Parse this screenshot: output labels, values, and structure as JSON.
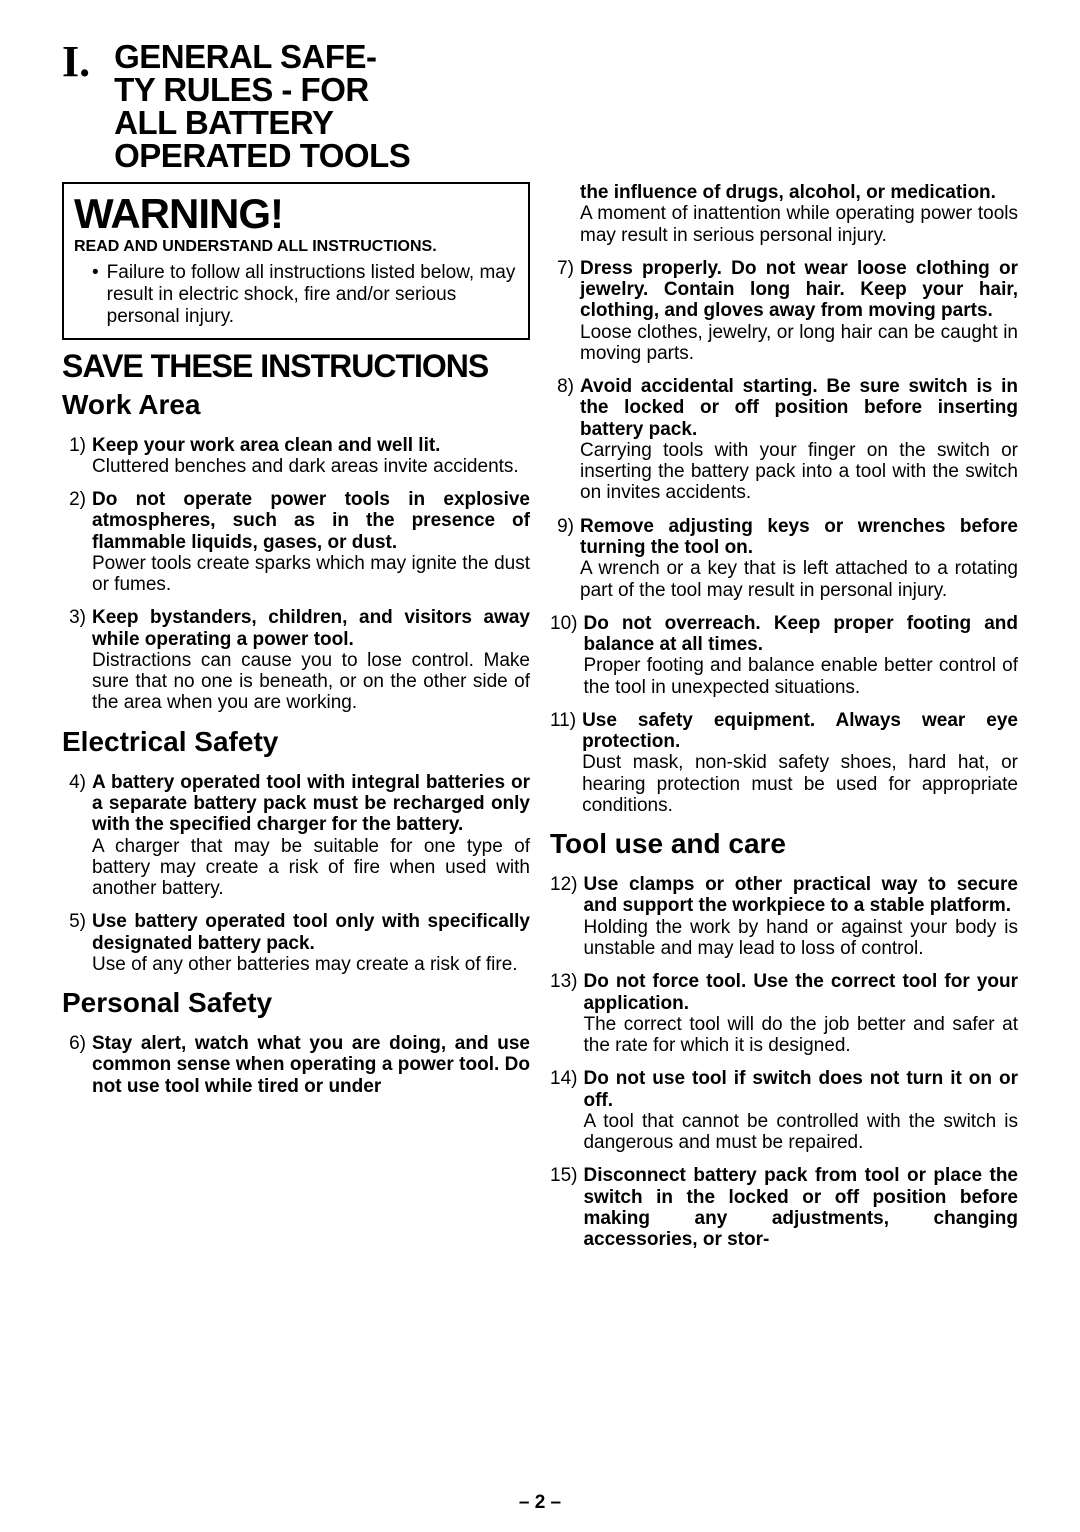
{
  "header": {
    "numeral": "I.",
    "title_line1": "GENERAL SAFE-",
    "title_line2": "TY RULES - FOR",
    "title_line3": "ALL BATTERY",
    "title_line4": "OPERATED TOOLS"
  },
  "warning": {
    "title": "WARNING!",
    "sub": "READ AND UNDERSTAND ALL INSTRUCTIONS.",
    "bullet": "Failure to follow all instructions listed below, may result in electric shock, fire and/or serious personal injury."
  },
  "save_line": "SAVE THESE INSTRUCTIONS",
  "sections": {
    "work_area": "Work Area",
    "electrical": "Electrical Safety",
    "personal": "Personal Safety",
    "tool_use": "Tool use and care"
  },
  "rules": {
    "r1": {
      "num": "1)",
      "bold": "Keep your work area clean and well lit.",
      "text": "Cluttered benches and dark areas invite accidents."
    },
    "r2": {
      "num": "2)",
      "bold": "Do not operate power tools in explosive atmospheres, such as in the presence of flammable liquids, gases, or dust.",
      "text": "Power tools create sparks which may ignite the dust or fumes."
    },
    "r3": {
      "num": "3)",
      "bold": "Keep bystanders, children, and visitors away while operating a power tool.",
      "text": "Distractions can cause you to lose control. Make sure that no one is beneath, or on the other side of the area when you are working."
    },
    "r4": {
      "num": "4)",
      "bold": "A battery operated tool with integral batteries or a separate battery pack must be recharged only with the specified charger for the battery.",
      "text": "A charger that may be suitable for one type of battery may create a risk of fire when used with another battery."
    },
    "r5": {
      "num": "5)",
      "bold": "Use battery operated tool only with specifically designated battery pack.",
      "text": "Use of any other batteries may create a risk of fire."
    },
    "r6": {
      "num": "6)",
      "bold": "Stay alert, watch what you are doing, and use common sense when operating a power tool. Do not use tool while tired or under"
    },
    "r6b": {
      "bold": "the influence of drugs, alcohol, or medication.",
      "text": "A moment of inattention while operating power tools may result in serious personal injury."
    },
    "r7": {
      "num": "7)",
      "bold": "Dress properly. Do not wear loose clothing or jewelry. Contain long hair. Keep your hair, clothing, and gloves away from moving parts.",
      "text": "Loose clothes, jewelry, or long hair can be caught in moving parts."
    },
    "r8": {
      "num": "8)",
      "bold": "Avoid accidental starting. Be sure switch is in the locked or off position before inserting battery pack.",
      "text": "Carrying tools with your finger on the switch or inserting the battery pack into a tool with the switch on invites accidents."
    },
    "r9": {
      "num": "9)",
      "bold": "Remove adjusting keys or wrenches before turning the tool on.",
      "text": "A wrench or a key that is left attached to a rotating part of the tool may result in personal injury."
    },
    "r10": {
      "num": "10)",
      "bold": "Do not overreach. Keep proper footing and balance at all times.",
      "text": "Proper footing and balance enable better control of the tool in unexpected situations."
    },
    "r11": {
      "num": "11)",
      "bold": "Use safety equipment. Always wear eye protection.",
      "text": "Dust mask, non-skid safety shoes, hard hat, or hearing protection must be used for appropriate conditions."
    },
    "r12": {
      "num": "12)",
      "bold": "Use clamps or other practical way to secure and support the workpiece to a stable platform.",
      "text": "Holding the work by hand or against your body is unstable and may lead to loss of control."
    },
    "r13": {
      "num": "13)",
      "bold": "Do not force tool. Use the correct tool for your application.",
      "text": "The correct tool will do the job better and safer at the rate for which it is designed."
    },
    "r14": {
      "num": "14)",
      "bold": "Do not use tool if switch does not turn it on or off.",
      "text": "A tool that cannot be controlled with the switch is dangerous and must be repaired."
    },
    "r15": {
      "num": "15)",
      "bold": "Disconnect battery pack from tool or place the switch in the locked or off position before making any adjustments, changing accessories, or stor-"
    }
  },
  "page_number": "– 2 –"
}
